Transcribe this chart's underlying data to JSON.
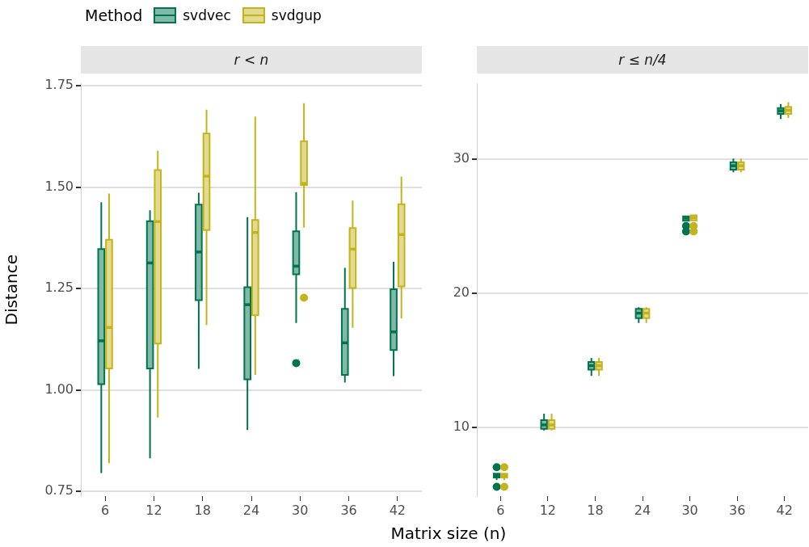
{
  "chart_data": [
    {
      "type": "box",
      "title": "r < n",
      "xlabel": "Matrix size (n)",
      "ylabel": "Distance",
      "legend_title": "Method",
      "legend": "top",
      "categories": [
        "6",
        "12",
        "18",
        "24",
        "30",
        "36",
        "42"
      ],
      "ylim": [
        0.738,
        1.755
      ],
      "yticks": [
        {
          "value": 0.75,
          "label": "0.75"
        },
        {
          "value": 1.0,
          "label": "1.00"
        },
        {
          "value": 1.25,
          "label": "1.25"
        },
        {
          "value": 1.5,
          "label": "1.50"
        },
        {
          "value": 1.75,
          "label": "1.75"
        }
      ],
      "grid": "y",
      "series": [
        {
          "name": "svdvec",
          "color": "#00734f",
          "boxes": [
            {
              "low": 0.795,
              "q1": 1.014,
              "median": 1.121,
              "q3": 1.347,
              "high": 1.463
            },
            {
              "low": 0.831,
              "q1": 1.053,
              "median": 1.313,
              "q3": 1.416,
              "high": 1.443
            },
            {
              "low": 1.052,
              "q1": 1.221,
              "median": 1.34,
              "q3": 1.457,
              "high": 1.486
            },
            {
              "low": 0.901,
              "q1": 1.026,
              "median": 1.21,
              "q3": 1.253,
              "high": 1.426
            },
            {
              "low": 1.165,
              "q1": 1.285,
              "median": 1.305,
              "q3": 1.391,
              "high": 1.487,
              "outliers": [
                1.066
              ]
            },
            {
              "low": 1.018,
              "q1": 1.037,
              "median": 1.116,
              "q3": 1.2,
              "high": 1.301
            },
            {
              "low": 1.034,
              "q1": 1.098,
              "median": 1.143,
              "q3": 1.248,
              "high": 1.316
            }
          ]
        },
        {
          "name": "svdgup",
          "color": "#c4b41c",
          "boxes": [
            {
              "low": 0.819,
              "q1": 1.053,
              "median": 1.154,
              "q3": 1.37,
              "high": 1.484
            },
            {
              "low": 0.932,
              "q1": 1.114,
              "median": 1.415,
              "q3": 1.542,
              "high": 1.59
            },
            {
              "low": 1.16,
              "q1": 1.394,
              "median": 1.527,
              "q3": 1.632,
              "high": 1.691
            },
            {
              "low": 1.037,
              "q1": 1.184,
              "median": 1.388,
              "q3": 1.419,
              "high": 1.674
            },
            {
              "low": 1.4,
              "q1": 1.505,
              "median": 1.509,
              "q3": 1.613,
              "high": 1.707,
              "outliers": [
                1.227
              ]
            },
            {
              "low": 1.153,
              "q1": 1.251,
              "median": 1.347,
              "q3": 1.399,
              "high": 1.467
            },
            {
              "low": 1.176,
              "q1": 1.255,
              "median": 1.383,
              "q3": 1.458,
              "high": 1.526
            }
          ]
        }
      ]
    },
    {
      "type": "box",
      "title": "r ≤ n/4",
      "categories": [
        "6",
        "12",
        "18",
        "24",
        "30",
        "36",
        "42"
      ],
      "ylim": [
        4.9,
        35.6
      ],
      "yticks": [
        10,
        20,
        30
      ],
      "grid": "y",
      "series": [
        {
          "color": "#00734f",
          "boxes": [
            {
              "low": 6.1,
              "q1": 6.28,
              "median": 6.42,
              "q3": 6.57,
              "high": 6.57,
              "outliers": [
                5.59,
                7.05
              ]
            },
            {
              "low": 9.78,
              "q1": 9.9,
              "median": 10.2,
              "q3": 10.55,
              "high": 11.04
            },
            {
              "low": 13.84,
              "q1": 14.31,
              "median": 14.61,
              "q3": 14.88,
              "high": 15.18
            },
            {
              "low": 17.78,
              "q1": 18.15,
              "median": 18.52,
              "q3": 18.84,
              "high": 18.96
            },
            {
              "low": 25.39,
              "q1": 25.39,
              "median": 25.59,
              "q3": 25.73,
              "high": 25.73,
              "outliers": [
                24.6,
                25.0
              ]
            },
            {
              "low": 29.0,
              "q1": 29.2,
              "median": 29.49,
              "q3": 29.76,
              "high": 30.02
            },
            {
              "low": 32.97,
              "q1": 33.35,
              "median": 33.58,
              "q3": 33.78,
              "high": 34.09
            }
          ]
        },
        {
          "color": "#c4b41c",
          "boxes": [
            {
              "low": 6.1,
              "q1": 6.28,
              "median": 6.42,
              "q3": 6.57,
              "high": 6.57,
              "outliers": [
                5.59,
                7.05
              ]
            },
            {
              "low": 9.78,
              "q1": 9.9,
              "median": 10.2,
              "q3": 10.55,
              "high": 11.04
            },
            {
              "low": 13.84,
              "q1": 14.31,
              "median": 14.61,
              "q3": 14.88,
              "high": 15.18
            },
            {
              "low": 17.78,
              "q1": 18.15,
              "median": 18.52,
              "q3": 18.84,
              "high": 18.96
            },
            {
              "low": 25.43,
              "q1": 25.43,
              "median": 25.62,
              "q3": 25.8,
              "high": 25.8,
              "outliers": [
                24.6,
                25.0
              ]
            },
            {
              "low": 29.0,
              "q1": 29.2,
              "median": 29.49,
              "q3": 29.76,
              "high": 30.02
            },
            {
              "low": 33.05,
              "q1": 33.35,
              "median": 33.62,
              "q3": 33.88,
              "high": 34.23
            }
          ]
        }
      ]
    }
  ]
}
